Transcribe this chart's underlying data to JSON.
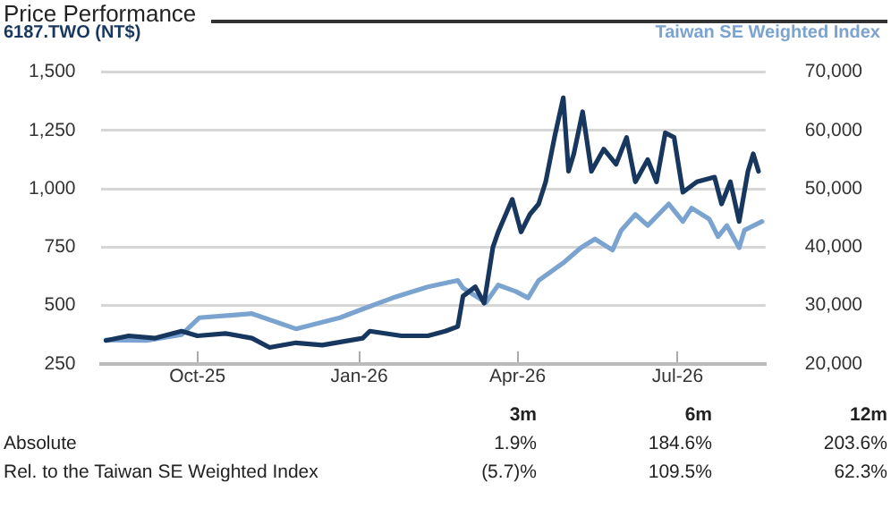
{
  "chart_data": {
    "type": "line",
    "title": "Price Performance",
    "xlim": [
      "2025-08-07",
      "2026-08-20"
    ],
    "xticks": [
      {
        "value": "2025-10-01",
        "label": "Oct-25"
      },
      {
        "value": "2026-01-01",
        "label": "Jan-26"
      },
      {
        "value": "2026-04-01",
        "label": "Apr-26"
      },
      {
        "value": "2026-07-01",
        "label": "Jul-26"
      }
    ],
    "ylim": [
      250,
      1500
    ],
    "yticks": [
      {
        "value": 250,
        "label": "250"
      },
      {
        "value": 500,
        "label": "500"
      },
      {
        "value": 750,
        "label": "750"
      },
      {
        "value": 1000,
        "label": "1,000"
      },
      {
        "value": 1250,
        "label": "1,250"
      },
      {
        "value": 1500,
        "label": "1,500"
      }
    ],
    "y2lim": [
      20000,
      70000
    ],
    "y2ticks": [
      {
        "value": 20000,
        "label": "20,000"
      },
      {
        "value": 30000,
        "label": "30,000"
      },
      {
        "value": 40000,
        "label": "40,000"
      },
      {
        "value": 50000,
        "label": "50,000"
      },
      {
        "value": 60000,
        "label": "60,000"
      },
      {
        "value": 70000,
        "label": "70,000"
      }
    ],
    "grid": "y",
    "legend": false,
    "marker": "none",
    "line_style": "solid",
    "series": [
      {
        "name": "6187.TWO (NT$)",
        "color": "#17375e",
        "x": [
          "2025-08-10",
          "2025-08-23",
          "2025-09-07",
          "2025-09-22",
          "2025-10-01",
          "2025-10-17",
          "2025-11-01",
          "2025-11-11",
          "2025-11-26",
          "2025-12-11",
          "2026-01-03",
          "2026-01-07",
          "2026-01-25",
          "2026-02-09",
          "2026-02-19",
          "2026-02-26",
          "2026-03-01",
          "2026-03-08",
          "2026-03-13",
          "2026-03-18",
          "2026-03-21",
          "2026-03-29",
          "2026-04-03",
          "2026-04-08",
          "2026-04-13",
          "2026-04-17",
          "2026-04-22",
          "2026-04-27",
          "2026-04-30",
          "2026-05-03",
          "2026-05-08",
          "2026-05-13",
          "2026-05-20",
          "2026-05-27",
          "2026-06-02",
          "2026-06-07",
          "2026-06-14",
          "2026-06-19",
          "2026-06-24",
          "2026-06-29",
          "2026-07-04",
          "2026-07-12",
          "2026-07-22",
          "2026-07-26",
          "2026-07-31",
          "2026-08-05",
          "2026-08-10",
          "2026-08-13",
          "2026-08-16"
        ],
        "values": [
          350,
          370,
          360,
          390,
          370,
          380,
          360,
          320,
          340,
          330,
          360,
          390,
          370,
          370,
          390,
          410,
          540,
          580,
          510,
          750,
          815,
          955,
          815,
          890,
          935,
          1030,
          1220,
          1390,
          1075,
          1150,
          1330,
          1075,
          1170,
          1105,
          1220,
          1030,
          1125,
          1030,
          1240,
          1220,
          985,
          1030,
          1050,
          935,
          1030,
          860,
          1075,
          1150,
          1075
        ]
      },
      {
        "name": "Taiwan SE Weighted Index",
        "color": "#7ba3d0",
        "axis": "y2",
        "x": [
          "2025-08-10",
          "2025-09-02",
          "2025-09-22",
          "2025-10-02",
          "2025-11-01",
          "2025-11-26",
          "2025-12-21",
          "2026-01-03",
          "2026-01-20",
          "2026-02-09",
          "2026-02-26",
          "2026-03-01",
          "2026-03-14",
          "2026-03-21",
          "2026-03-31",
          "2026-04-07",
          "2026-04-13",
          "2026-04-27",
          "2026-05-07",
          "2026-05-15",
          "2026-05-25",
          "2026-05-30",
          "2026-06-07",
          "2026-06-14",
          "2026-06-26",
          "2026-07-04",
          "2026-07-09",
          "2026-07-19",
          "2026-07-24",
          "2026-07-29",
          "2026-08-05",
          "2026-08-08",
          "2026-08-18"
        ],
        "values": [
          24100,
          24000,
          25000,
          27900,
          28600,
          26000,
          27900,
          29400,
          31300,
          33200,
          34300,
          33000,
          30500,
          33500,
          32400,
          31300,
          34300,
          37300,
          39900,
          41400,
          39500,
          42900,
          45600,
          43700,
          47400,
          44400,
          46700,
          44800,
          41800,
          43700,
          39900,
          42900,
          44400
        ]
      }
    ],
    "annotations": [
      "3m",
      "6m",
      "12m",
      "Absolute",
      "1.9%",
      "184.6%",
      "203.6%",
      "Rel. to the Taiwan SE Weighted Index",
      "(5.7)%",
      "109.5%",
      "62.3%"
    ]
  }
}
